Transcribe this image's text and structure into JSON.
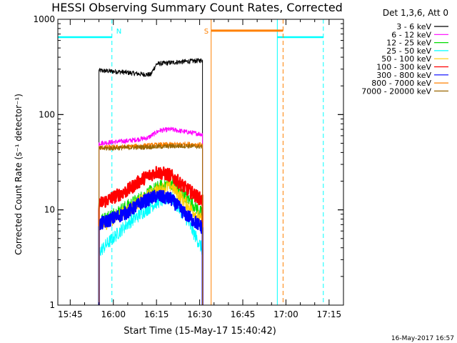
{
  "chart_data": {
    "type": "line",
    "title": "HESSI Observing Summary Count Rates, Corrected",
    "xlabel": "Start Time (15-May-17 15:40:42)",
    "ylabel": "Corrected Count Rate (s⁻¹ detector⁻¹)",
    "y_scale": "log",
    "ylim": [
      1,
      1000
    ],
    "xlim": [
      "15:40:42",
      "17:20:00"
    ],
    "x_ticks": [
      "15:45",
      "16:00",
      "16:15",
      "16:30",
      "16:45",
      "17:00",
      "17:15"
    ],
    "y_ticks": [
      "1",
      "10",
      "100",
      "1000"
    ],
    "legend_title": "Det 1,3,6, Att 0",
    "legend_position": "right",
    "series": [
      {
        "name": "3 - 6 keV",
        "color": "#000000",
        "x": [
          "15:55",
          "16:03",
          "16:10",
          "16:13",
          "16:14",
          "16:15",
          "16:22",
          "16:31"
        ],
        "y": [
          290,
          280,
          265,
          262,
          300,
          340,
          355,
          370
        ]
      },
      {
        "name": "6 - 12 keV",
        "color": "#ff00ff",
        "x": [
          "15:55",
          "16:05",
          "16:12",
          "16:16",
          "16:20",
          "16:25",
          "16:31"
        ],
        "y": [
          50,
          53,
          57,
          68,
          70,
          66,
          62
        ]
      },
      {
        "name": "12 - 25 keV",
        "color": "#00dd00",
        "x": [
          "15:55",
          "16:05",
          "16:15",
          "16:20",
          "16:25",
          "16:31"
        ],
        "y": [
          7.5,
          11,
          17,
          19.5,
          14,
          9
        ]
      },
      {
        "name": "25 - 50 keV",
        "color": "#00ffff",
        "x": [
          "15:55",
          "16:05",
          "16:15",
          "16:20",
          "16:25",
          "16:31"
        ],
        "y": [
          3.6,
          7.2,
          12,
          13.5,
          8.5,
          3.8
        ]
      },
      {
        "name": "50 - 100 keV",
        "color": "#ffcc00",
        "x": [
          "15:55",
          "16:05",
          "16:15",
          "16:20",
          "16:25",
          "16:31"
        ],
        "y": [
          6.5,
          10,
          16,
          18,
          12,
          7.5
        ]
      },
      {
        "name": "100 - 300 keV",
        "color": "#ff0000",
        "x": [
          "15:55",
          "16:05",
          "16:10",
          "16:15",
          "16:20",
          "16:25",
          "16:31"
        ],
        "y": [
          11.5,
          16,
          21,
          25,
          23,
          17,
          12.5
        ]
      },
      {
        "name": "300 - 800 keV",
        "color": "#0000ff",
        "x": [
          "15:55",
          "16:05",
          "16:10",
          "16:15",
          "16:20",
          "16:25",
          "16:31"
        ],
        "y": [
          7,
          9.5,
          12,
          14,
          13,
          9,
          6.5
        ]
      },
      {
        "name": "800 - 7000 keV",
        "color": "#ff8000",
        "x": [
          "15:55",
          "16:05",
          "16:15",
          "16:25",
          "16:31"
        ],
        "y": [
          45,
          46,
          48,
          49,
          48
        ]
      },
      {
        "name": "7000 - 20000 keV",
        "color": "#996600",
        "x": [
          "15:55",
          "16:05",
          "16:15",
          "16:25",
          "16:31"
        ],
        "y": [
          44,
          45,
          46,
          47,
          46
        ]
      }
    ],
    "annotations": [
      {
        "text": "N",
        "color": "#00ffff",
        "x": "15:59:30"
      },
      {
        "text": "S",
        "color": "#ff8000",
        "x": "16:34"
      }
    ],
    "night_segments": [
      [
        "15:40:42",
        "15:59:30"
      ],
      [
        "16:57",
        "17:13"
      ]
    ],
    "saa_segments": [
      [
        "16:34",
        "16:59"
      ]
    ],
    "timestamp": "16-May-2017 16:57"
  }
}
